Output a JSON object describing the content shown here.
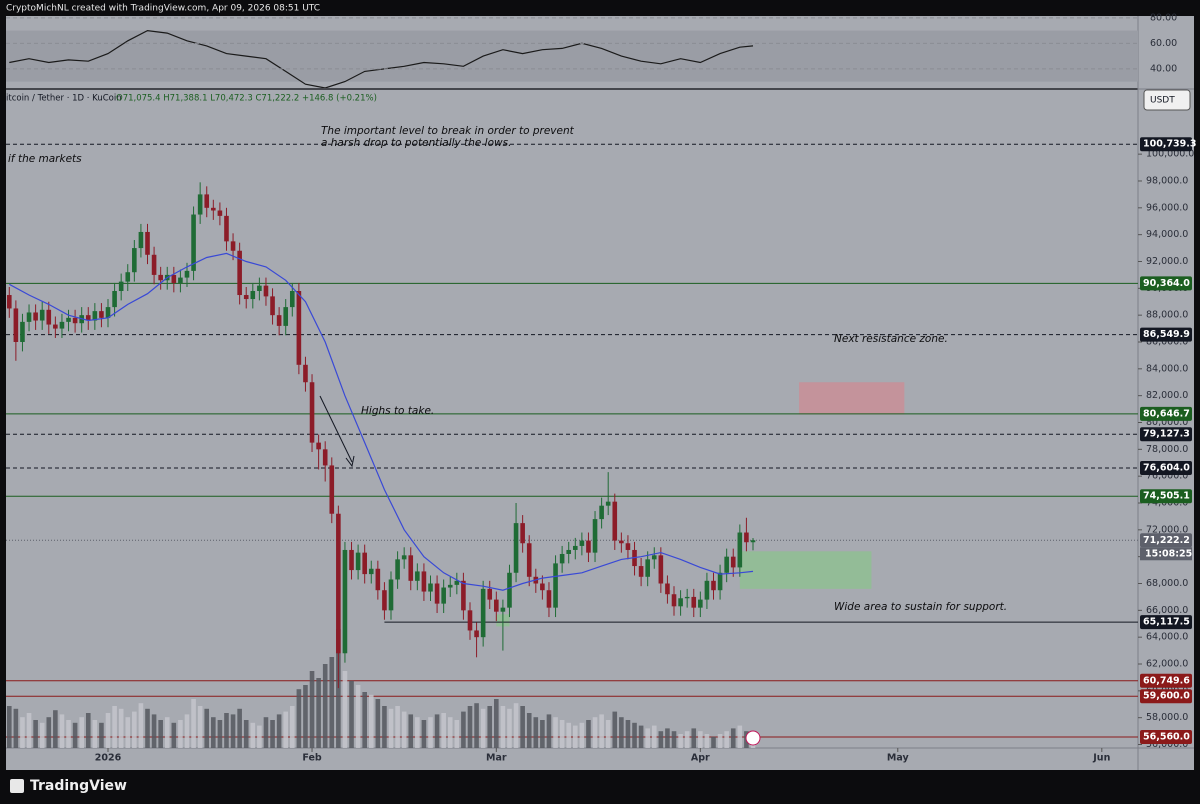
{
  "header": {
    "credit": "CryptoMichNL created with TradingView.com, Apr 09, 2026 08:51 UTC",
    "symbol": "itcoin / Tether · 1D · KuCoin",
    "ohlc": "O71,075.4 H71,388.1 L70,472.3 C71,222.2 +146.8 (+0.21%)",
    "currency": "USDT",
    "countdown": "15:08:25",
    "brand": "TradingView"
  },
  "chart_data": {
    "type": "candlestick",
    "annotations": [
      "if the markets",
      "The important level to break in order to prevent",
      "a harsh drop to potentially the lows.",
      "Highs to take.",
      "Next resistance zone.",
      "Wide area to sustain for support."
    ],
    "x": [
      0,
      1,
      2,
      3,
      4,
      5,
      6,
      7,
      8,
      9,
      10,
      11,
      12,
      13,
      14,
      15,
      16,
      17,
      18,
      19,
      20,
      21,
      22,
      23,
      24,
      25,
      26,
      27,
      28,
      29,
      30,
      31,
      32,
      33,
      34,
      35,
      36,
      37,
      38,
      39,
      40,
      41,
      42,
      43,
      44,
      45,
      46,
      47,
      48,
      49,
      50,
      51,
      52,
      53,
      54,
      55,
      56,
      57,
      58,
      59,
      60,
      61,
      62,
      63,
      64,
      65,
      66,
      67,
      68,
      69,
      70,
      71,
      72,
      73,
      74,
      75,
      76,
      77,
      78,
      79,
      80,
      81,
      82,
      83,
      84,
      85,
      86,
      87,
      88,
      89,
      90,
      91,
      92,
      93,
      94,
      95,
      96,
      97,
      98,
      99,
      100,
      101,
      102,
      103,
      104,
      105,
      106,
      107,
      108,
      109,
      110,
      111,
      112,
      113
    ],
    "open": [
      89500,
      88500,
      86000,
      87500,
      88200,
      87600,
      88400,
      87300,
      87000,
      87500,
      87800,
      87400,
      88000,
      87600,
      88300,
      87800,
      88600,
      89800,
      90500,
      91200,
      93000,
      94200,
      92500,
      91000,
      90600,
      91000,
      90400,
      90800,
      91300,
      95500,
      97000,
      96000,
      95800,
      95400,
      93500,
      92800,
      89500,
      89200,
      89800,
      90200,
      89400,
      88000,
      87200,
      88600,
      89800,
      84300,
      83000,
      78500,
      78000,
      76800,
      73200,
      62800,
      70500,
      69000,
      70300,
      68700,
      69100,
      67500,
      66000,
      68300,
      69800,
      70100,
      68200,
      68900,
      67400,
      68000,
      66500,
      67700,
      67900,
      68200,
      66000,
      64500,
      64000,
      67600,
      66800,
      65900,
      66200,
      68800,
      72500,
      71000,
      68500,
      68000,
      67500,
      66200,
      69500,
      70200,
      70500,
      70800,
      71200,
      70300,
      72800,
      73800,
      74100,
      71200,
      71000,
      70500,
      69300,
      68500,
      69800,
      70100,
      68000,
      67200,
      66300,
      66900,
      67000,
      66200,
      66800,
      68200,
      67500,
      68800,
      70000,
      69200,
      71800,
      71075.4
    ],
    "high": [
      90100,
      89100,
      88100,
      88800,
      88800,
      89000,
      89000,
      87900,
      88100,
      88400,
      88400,
      88600,
      88600,
      88900,
      88900,
      89200,
      90400,
      91100,
      91800,
      93600,
      94800,
      94800,
      93100,
      91600,
      91600,
      91600,
      91400,
      91900,
      96100,
      97900,
      97600,
      96600,
      96400,
      96000,
      94100,
      93400,
      90100,
      90400,
      90800,
      90800,
      90000,
      88600,
      89200,
      90400,
      90400,
      84900,
      83600,
      79100,
      78600,
      77400,
      73800,
      71100,
      71100,
      70900,
      70900,
      69700,
      69700,
      68100,
      68900,
      70400,
      70700,
      70700,
      69500,
      69500,
      68600,
      68600,
      68300,
      68500,
      68800,
      68800,
      66600,
      65100,
      68200,
      68200,
      67400,
      66800,
      69400,
      74000,
      73100,
      71600,
      69100,
      68600,
      68100,
      70100,
      70800,
      71100,
      71400,
      71800,
      71800,
      73400,
      74400,
      76300,
      74700,
      71800,
      71600,
      71100,
      69900,
      70400,
      70700,
      70700,
      68600,
      67800,
      67500,
      67600,
      67600,
      67400,
      68800,
      68800,
      69400,
      70600,
      70600,
      72400,
      72900,
      71388.1
    ],
    "low": [
      87800,
      84600,
      85300,
      86800,
      86900,
      86900,
      86600,
      86300,
      86300,
      86800,
      86700,
      86700,
      86900,
      86900,
      87100,
      87100,
      87900,
      89100,
      89800,
      90500,
      92300,
      91800,
      90300,
      89900,
      89900,
      89700,
      89700,
      90100,
      90600,
      94800,
      95300,
      95100,
      94700,
      92800,
      92100,
      88800,
      88500,
      88500,
      89100,
      88700,
      87300,
      86500,
      86500,
      87900,
      83600,
      82300,
      77800,
      76500,
      75600,
      72500,
      60200,
      62100,
      68300,
      68300,
      68000,
      68000,
      66800,
      65300,
      65300,
      67600,
      69100,
      67500,
      67500,
      66700,
      66700,
      65800,
      65800,
      67000,
      67200,
      65300,
      63800,
      62500,
      63300,
      66100,
      65200,
      63000,
      65500,
      68100,
      70300,
      67800,
      67300,
      66800,
      65500,
      65500,
      68800,
      69500,
      69800,
      70100,
      69600,
      69600,
      72100,
      73100,
      70500,
      70300,
      69800,
      68600,
      67800,
      67800,
      69100,
      67300,
      66500,
      65600,
      65600,
      66200,
      65500,
      65500,
      66100,
      66800,
      66800,
      68100,
      68500,
      68500,
      70400,
      70472.3
    ],
    "close": [
      88500,
      86000,
      87500,
      88200,
      87600,
      88400,
      87300,
      87000,
      87500,
      87800,
      87400,
      88000,
      87600,
      88300,
      87800,
      88600,
      89800,
      90500,
      91200,
      93000,
      94200,
      92500,
      91000,
      90600,
      91000,
      90400,
      90800,
      91300,
      95500,
      97000,
      96000,
      95800,
      95400,
      93500,
      92800,
      89500,
      89200,
      89800,
      90200,
      89400,
      88000,
      87200,
      88600,
      89800,
      84300,
      83000,
      78500,
      78000,
      76800,
      73200,
      62800,
      70500,
      69000,
      70300,
      68700,
      69100,
      67500,
      66000,
      68300,
      69800,
      70100,
      68200,
      68900,
      67400,
      68000,
      66500,
      67700,
      67900,
      68200,
      66000,
      64500,
      64000,
      67600,
      66800,
      65900,
      66200,
      68800,
      72500,
      71000,
      68500,
      68000,
      67500,
      66200,
      69500,
      70200,
      70500,
      70800,
      71200,
      70300,
      72800,
      73800,
      74100,
      71200,
      71000,
      70500,
      69300,
      68500,
      69800,
      70100,
      68000,
      67200,
      66300,
      66900,
      67000,
      66200,
      66800,
      68200,
      67500,
      68800,
      70000,
      69200,
      71800,
      71075.4,
      71222.2
    ],
    "volume": [
      30,
      28,
      22,
      25,
      20,
      18,
      22,
      27,
      24,
      20,
      18,
      22,
      25,
      20,
      18,
      25,
      30,
      28,
      22,
      26,
      32,
      28,
      24,
      20,
      22,
      18,
      20,
      24,
      35,
      30,
      28,
      22,
      20,
      25,
      24,
      28,
      20,
      18,
      16,
      22,
      20,
      24,
      26,
      30,
      42,
      45,
      55,
      50,
      60,
      65,
      85,
      55,
      48,
      45,
      40,
      38,
      35,
      30,
      28,
      30,
      26,
      24,
      22,
      20,
      22,
      24,
      25,
      22,
      20,
      26,
      30,
      32,
      28,
      30,
      35,
      30,
      28,
      32,
      30,
      25,
      22,
      20,
      24,
      22,
      20,
      18,
      16,
      18,
      20,
      22,
      24,
      20,
      26,
      22,
      20,
      18,
      16,
      14,
      16,
      12,
      14,
      12,
      10,
      12,
      14,
      12,
      10,
      8,
      10,
      12,
      14,
      16,
      12,
      8
    ],
    "up_color": "#1f6b35",
    "down_color": "#8c1c28",
    "vlim": [
      0,
      100
    ],
    "indicator_x": [
      0,
      3,
      6,
      9,
      12,
      15,
      18,
      21,
      24,
      27,
      30,
      33,
      36,
      39,
      42,
      45,
      48,
      51,
      54,
      57,
      60,
      63,
      66,
      69,
      72,
      75,
      78,
      81,
      84,
      87,
      90,
      93,
      96,
      99,
      102,
      105,
      108,
      111,
      113
    ],
    "ma": {
      "color": "#3949d6",
      "values": [
        90300,
        89500,
        88800,
        88000,
        87600,
        87800,
        88800,
        89600,
        90800,
        91600,
        92300,
        92600,
        92000,
        91600,
        90600,
        89000,
        86000,
        82000,
        78500,
        75000,
        72000,
        70000,
        68800,
        68000,
        67800,
        67500,
        68000,
        68400,
        68600,
        68800,
        69300,
        69800,
        70000,
        70300,
        69800,
        69200,
        68700,
        68800,
        68900
      ]
    },
    "rsi": {
      "color": "#1a1a1a",
      "values": [
        45,
        48,
        45,
        47,
        46,
        52,
        62,
        70,
        68,
        62,
        58,
        52,
        50,
        48,
        38,
        28,
        25,
        30,
        38,
        40,
        42,
        45,
        44,
        42,
        50,
        55,
        52,
        55,
        56,
        60,
        56,
        50,
        46,
        44,
        48,
        45,
        52,
        57,
        58
      ],
      "lim": [
        25,
        83
      ],
      "band": [
        30,
        70
      ],
      "ticks": [
        {
          "value": 40,
          "label": "40.00"
        },
        {
          "value": 60,
          "label": "60.00"
        },
        {
          "value": 80,
          "label": "80.00"
        }
      ]
    },
    "xlim": [
      -0.5,
      171.5
    ],
    "xticks": [
      {
        "value": 15,
        "label": "2026"
      },
      {
        "value": 46,
        "label": "Feb"
      },
      {
        "value": 74,
        "label": "Mar"
      },
      {
        "value": 105,
        "label": "Apr"
      },
      {
        "value": 135,
        "label": "May"
      },
      {
        "value": 166,
        "label": "Jun"
      }
    ],
    "ylim": [
      55740,
      104930
    ],
    "yticks": [
      {
        "value": 56000,
        "label": "56,000.0"
      },
      {
        "value": 58000,
        "label": "58,000.0"
      },
      {
        "value": 60000,
        "label": "60,000.0"
      },
      {
        "value": 62000,
        "label": "62,000.0"
      },
      {
        "value": 64000,
        "label": "64,000.0"
      },
      {
        "value": 66000,
        "label": "66,000.0"
      },
      {
        "value": 68000,
        "label": "68,000.0"
      },
      {
        "value": 70000,
        "label": "70,000.0"
      },
      {
        "value": 72000,
        "label": "72,000.0"
      },
      {
        "value": 74000,
        "label": "74,000.0"
      },
      {
        "value": 76000,
        "label": "76,000.0"
      },
      {
        "value": 78000,
        "label": "78,000.0"
      },
      {
        "value": 80000,
        "label": "80,000.0"
      },
      {
        "value": 82000,
        "label": "82,000.0"
      },
      {
        "value": 84000,
        "label": "84,000.0"
      },
      {
        "value": 86000,
        "label": "86,000.0"
      },
      {
        "value": 88000,
        "label": "88,000.0"
      },
      {
        "value": 90000,
        "label": "90,000.0"
      },
      {
        "value": 92000,
        "label": "92,000.0"
      },
      {
        "value": 94000,
        "label": "94,000.0"
      },
      {
        "value": 96000,
        "label": "96,000.0"
      },
      {
        "value": 98000,
        "label": "98,000.0"
      },
      {
        "value": 100000,
        "label": "100,000.0"
      }
    ],
    "levels": [
      {
        "value": 100739.3,
        "label": "100,739.3",
        "style": "dashed",
        "color": "#131722"
      },
      {
        "value": 90364.0,
        "label": "90,364.0",
        "style": "solid",
        "color": "#1b5e20"
      },
      {
        "value": 86549.9,
        "label": "86,549.9",
        "style": "dashed",
        "color": "#131722"
      },
      {
        "value": 80646.7,
        "label": "80,646.7",
        "style": "solid",
        "color": "#1b5e20"
      },
      {
        "value": 79127.3,
        "label": "79,127.3",
        "style": "dashed",
        "color": "#131722"
      },
      {
        "value": 76604.0,
        "label": "76,604.0",
        "style": "dashed",
        "color": "#131722"
      },
      {
        "value": 74505.1,
        "label": "74,505.1",
        "style": "solid",
        "color": "#1b5e20"
      },
      {
        "value": 71222.2,
        "label": "71,222.2",
        "style": "dotted",
        "color": "#5d606b"
      },
      {
        "value": 65117.5,
        "label": "65,117.5",
        "style": "solid",
        "color": "#131722",
        "from": 57
      },
      {
        "value": 60749.6,
        "label": "60,749.6",
        "style": "solid",
        "color": "#8b1a1a"
      },
      {
        "value": 59600.0,
        "label": "59,600.0",
        "style": "solid",
        "color": "#8b1a1a"
      },
      {
        "value": 56560.0,
        "label": "56,560.0",
        "style": "solid",
        "color": "#8b1a1a"
      }
    ],
    "zones": [
      {
        "x": [
          120,
          136
        ],
        "low": 80600,
        "high": 83000,
        "color": "#c98f98"
      },
      {
        "x": [
          111,
          131
        ],
        "low": 67600,
        "high": 70400,
        "color": "#8fbf93"
      },
      {
        "x": [
          74,
          76
        ],
        "low": 64800,
        "high": 65700,
        "color": "#8fbf93"
      }
    ]
  }
}
